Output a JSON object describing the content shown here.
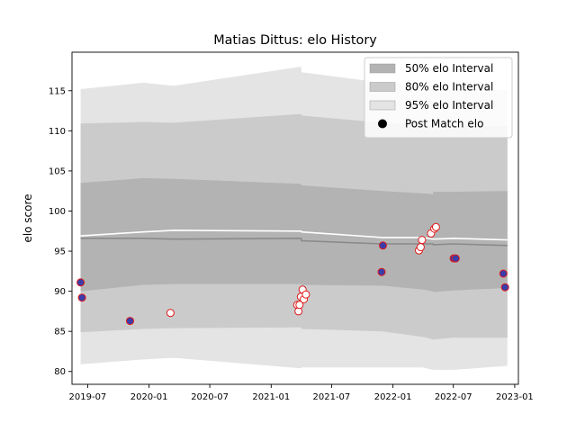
{
  "chart_data": {
    "type": "line",
    "title": "Matias Dittus: elo History",
    "xlabel": "",
    "ylabel": "elo score",
    "xlim": [
      "2019-05-15",
      "2023-01-12"
    ],
    "ylim": [
      78.4,
      119.8
    ],
    "x_ticks": [
      "2019-07",
      "2020-01",
      "2020-07",
      "2021-01",
      "2021-07",
      "2022-01",
      "2022-07",
      "2023-01"
    ],
    "y_ticks": [
      80,
      85,
      90,
      95,
      100,
      105,
      110,
      115
    ],
    "grid": false,
    "legend": {
      "position": "top-right",
      "entries": [
        "50% elo Interval",
        "80% elo Interval",
        "95% elo Interval",
        "Post Match elo"
      ]
    },
    "colors": {
      "band_50": "#b3b3b3",
      "band_80": "#cbcbcb",
      "band_95": "#e4e4e4",
      "median_line": "#8a8a8a",
      "mean_line": "#ffffff",
      "win_marker_fill": "#3c3ca8",
      "loss_marker_fill": "#ffffff",
      "marker_edge": "#e01a1a"
    },
    "bands": {
      "dates": [
        "2019-06-10",
        "2019-12-15",
        "2020-03-15",
        "2021-04-01",
        "2021-04-02",
        "2021-12-01",
        "2022-04-01",
        "2022-05-01",
        "2022-05-02",
        "2022-07-01",
        "2022-12-10"
      ],
      "median": [
        96.6,
        96.6,
        96.5,
        96.6,
        96.3,
        95.9,
        95.9,
        95.9,
        95.8,
        95.9,
        95.7
      ],
      "mean": [
        96.9,
        97.4,
        97.6,
        97.5,
        97.4,
        96.7,
        96.7,
        96.5,
        96.5,
        96.6,
        96.4
      ],
      "p50_low": [
        90.0,
        90.8,
        90.9,
        90.9,
        90.8,
        90.7,
        90.2,
        90.0,
        89.9,
        90.1,
        90.4
      ],
      "p50_high": [
        103.5,
        104.1,
        104.0,
        103.4,
        103.2,
        102.5,
        102.2,
        102.1,
        102.4,
        102.4,
        102.5
      ],
      "p80_low": [
        84.9,
        85.3,
        85.4,
        85.5,
        85.3,
        85.0,
        84.3,
        84.0,
        84.0,
        84.2,
        84.2
      ],
      "p80_high": [
        110.9,
        111.1,
        111.0,
        112.1,
        111.9,
        111.0,
        110.8,
        110.6,
        110.5,
        110.6,
        110.6
      ],
      "p95_low": [
        80.9,
        81.5,
        81.7,
        80.4,
        80.5,
        80.5,
        80.5,
        80.2,
        80.2,
        80.2,
        80.7
      ],
      "p95_high": [
        115.2,
        116.0,
        115.6,
        118.0,
        117.3,
        116.0,
        115.6,
        115.5,
        115.4,
        115.2,
        115.1
      ]
    },
    "matches": [
      {
        "date": "2019-06-10",
        "elo": 91.1,
        "result": "win"
      },
      {
        "date": "2019-06-14",
        "elo": 89.2,
        "result": "win"
      },
      {
        "date": "2019-11-05",
        "elo": 86.3,
        "result": "win"
      },
      {
        "date": "2020-03-05",
        "elo": 87.3,
        "result": "loss"
      },
      {
        "date": "2021-03-20",
        "elo": 88.3,
        "result": "loss"
      },
      {
        "date": "2021-03-24",
        "elo": 87.5,
        "result": "loss"
      },
      {
        "date": "2021-03-27",
        "elo": 88.3,
        "result": "loss"
      },
      {
        "date": "2021-03-31",
        "elo": 89.3,
        "result": "loss"
      },
      {
        "date": "2021-04-05",
        "elo": 90.2,
        "result": "loss"
      },
      {
        "date": "2021-04-09",
        "elo": 89.0,
        "result": "loss"
      },
      {
        "date": "2021-04-15",
        "elo": 89.6,
        "result": "loss"
      },
      {
        "date": "2021-11-28",
        "elo": 92.4,
        "result": "win"
      },
      {
        "date": "2021-12-02",
        "elo": 95.7,
        "result": "win"
      },
      {
        "date": "2022-03-20",
        "elo": 95.1,
        "result": "loss"
      },
      {
        "date": "2022-03-25",
        "elo": 95.5,
        "result": "loss"
      },
      {
        "date": "2022-03-29",
        "elo": 96.4,
        "result": "loss"
      },
      {
        "date": "2022-04-25",
        "elo": 97.2,
        "result": "loss"
      },
      {
        "date": "2022-05-05",
        "elo": 97.8,
        "result": "loss"
      },
      {
        "date": "2022-05-10",
        "elo": 98.0,
        "result": "loss"
      },
      {
        "date": "2022-07-02",
        "elo": 94.1,
        "result": "win"
      },
      {
        "date": "2022-07-08",
        "elo": 94.1,
        "result": "win"
      },
      {
        "date": "2022-11-28",
        "elo": 92.2,
        "result": "win"
      },
      {
        "date": "2022-12-03",
        "elo": 90.5,
        "result": "win"
      }
    ]
  }
}
